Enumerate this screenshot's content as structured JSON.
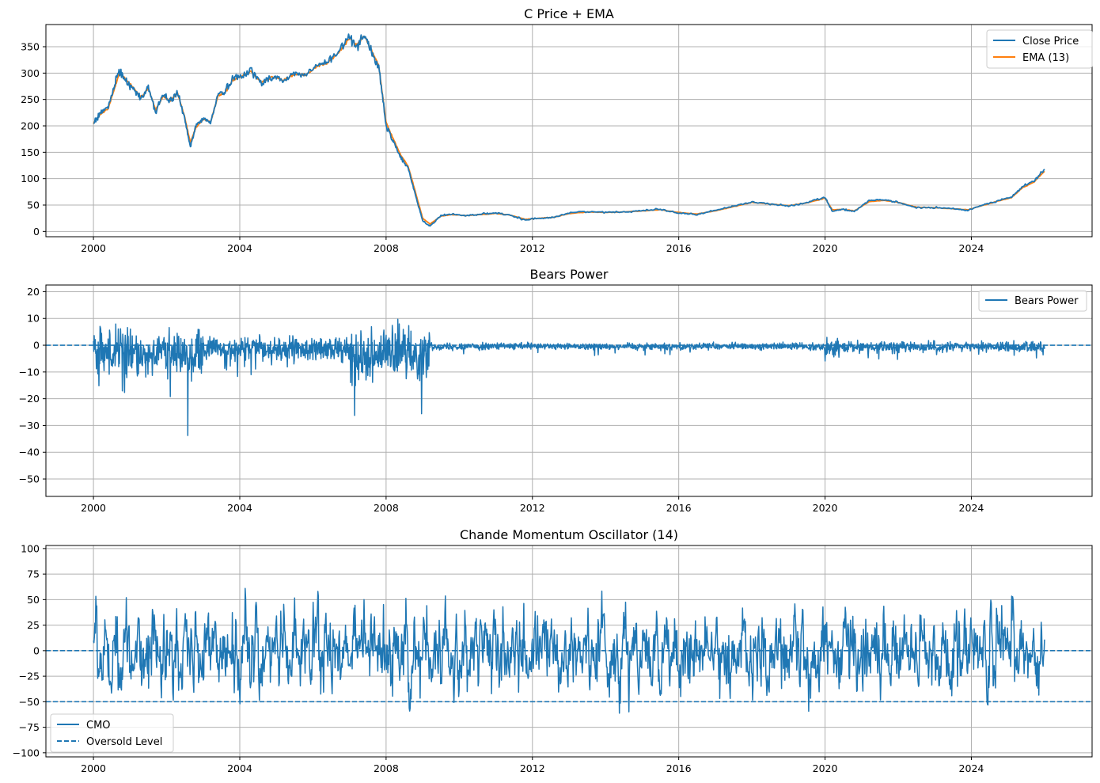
{
  "colors": {
    "blue": "#1f77b4",
    "orange": "#ff7f0e",
    "grid": "#b0b0b0",
    "frame": "#000000"
  },
  "chart_data": [
    {
      "type": "line",
      "title": "C Price + EMA",
      "xlabel": "",
      "ylabel": "",
      "xlim": [
        1998.7,
        2027.3
      ],
      "ylim": [
        -10,
        392
      ],
      "grid": true,
      "legend_position": "upper right",
      "x_ticks": [
        2000,
        2004,
        2008,
        2012,
        2016,
        2020,
        2024
      ],
      "x_tick_labels": [
        "2000",
        "2004",
        "2008",
        "2012",
        "2016",
        "2020",
        "2024"
      ],
      "y_ticks": [
        0,
        50,
        100,
        150,
        200,
        250,
        300,
        350
      ],
      "y_tick_labels": [
        "0",
        "50",
        "100",
        "150",
        "200",
        "250",
        "300",
        "350"
      ],
      "series": [
        {
          "name": "Close Price",
          "color": "#1f77b4",
          "x": [
            2000.0,
            2000.2,
            2000.4,
            2000.55,
            2000.7,
            2000.9,
            2001.1,
            2001.3,
            2001.5,
            2001.7,
            2001.9,
            2002.1,
            2002.3,
            2002.5,
            2002.65,
            2002.8,
            2003.0,
            2003.2,
            2003.4,
            2003.6,
            2003.8,
            2004.0,
            2004.3,
            2004.6,
            2004.9,
            2005.2,
            2005.5,
            2005.8,
            2006.1,
            2006.4,
            2006.7,
            2007.0,
            2007.2,
            2007.4,
            2007.6,
            2007.8,
            2008.0,
            2008.2,
            2008.4,
            2008.6,
            2008.8,
            2009.0,
            2009.2,
            2009.5,
            2009.8,
            2010.2,
            2010.6,
            2011.0,
            2011.4,
            2011.8,
            2012.2,
            2012.6,
            2013.0,
            2013.5,
            2014.0,
            2014.5,
            2015.0,
            2015.5,
            2016.0,
            2016.5,
            2017.0,
            2017.5,
            2018.0,
            2018.5,
            2019.0,
            2019.5,
            2020.0,
            2020.2,
            2020.5,
            2020.8,
            2021.2,
            2021.6,
            2022.0,
            2022.5,
            2023.0,
            2023.5,
            2023.9,
            2024.3,
            2024.7,
            2025.1,
            2025.4,
            2025.7,
            2026.0
          ],
          "values": [
            205,
            225,
            235,
            270,
            305,
            285,
            270,
            250,
            275,
            225,
            260,
            245,
            265,
            210,
            160,
            200,
            215,
            205,
            260,
            265,
            290,
            295,
            305,
            280,
            295,
            285,
            300,
            295,
            315,
            320,
            340,
            370,
            350,
            375,
            340,
            310,
            200,
            170,
            140,
            120,
            70,
            20,
            10,
            30,
            33,
            30,
            33,
            35,
            30,
            22,
            25,
            27,
            35,
            38,
            36,
            37,
            40,
            42,
            35,
            32,
            40,
            48,
            56,
            52,
            48,
            55,
            65,
            38,
            42,
            38,
            58,
            60,
            55,
            45,
            45,
            43,
            40,
            50,
            58,
            65,
            85,
            95,
            118
          ]
        },
        {
          "name": "EMA (13)",
          "color": "#ff7f0e",
          "x": [
            2000.0,
            2000.2,
            2000.4,
            2000.55,
            2000.7,
            2000.9,
            2001.1,
            2001.3,
            2001.5,
            2001.7,
            2001.9,
            2002.1,
            2002.3,
            2002.5,
            2002.65,
            2002.8,
            2003.0,
            2003.2,
            2003.4,
            2003.6,
            2003.8,
            2004.0,
            2004.3,
            2004.6,
            2004.9,
            2005.2,
            2005.5,
            2005.8,
            2006.1,
            2006.4,
            2006.7,
            2007.0,
            2007.2,
            2007.4,
            2007.6,
            2007.8,
            2008.0,
            2008.2,
            2008.4,
            2008.6,
            2008.8,
            2009.0,
            2009.2,
            2009.5,
            2009.8,
            2010.2,
            2010.6,
            2011.0,
            2011.4,
            2011.8,
            2012.2,
            2012.6,
            2013.0,
            2013.5,
            2014.0,
            2014.5,
            2015.0,
            2015.5,
            2016.0,
            2016.5,
            2017.0,
            2017.5,
            2018.0,
            2018.5,
            2019.0,
            2019.5,
            2020.0,
            2020.2,
            2020.5,
            2020.8,
            2021.2,
            2021.6,
            2022.0,
            2022.5,
            2023.0,
            2023.5,
            2023.9,
            2024.3,
            2024.7,
            2025.1,
            2025.4,
            2025.7,
            2026.0
          ],
          "values": [
            205,
            222,
            232,
            265,
            300,
            287,
            272,
            253,
            272,
            230,
            256,
            247,
            262,
            215,
            168,
            197,
            212,
            207,
            256,
            263,
            287,
            293,
            303,
            283,
            293,
            286,
            298,
            296,
            313,
            319,
            338,
            366,
            353,
            371,
            343,
            314,
            207,
            175,
            145,
            124,
            75,
            25,
            14,
            29,
            32,
            30,
            32,
            34,
            31,
            23,
            25,
            27,
            34,
            37,
            36,
            37,
            39,
            41,
            36,
            33,
            39,
            47,
            55,
            52,
            49,
            54,
            63,
            41,
            42,
            39,
            56,
            59,
            55,
            46,
            45,
            43,
            41,
            49,
            57,
            64,
            83,
            93,
            114
          ]
        }
      ]
    },
    {
      "type": "line",
      "title": "Bears Power",
      "xlabel": "",
      "ylabel": "",
      "xlim": [
        1998.7,
        2027.3
      ],
      "ylim": [
        -56.5,
        22.5
      ],
      "grid": true,
      "legend_position": "upper right",
      "x_ticks": [
        2000,
        2004,
        2008,
        2012,
        2016,
        2020,
        2024
      ],
      "x_tick_labels": [
        "2000",
        "2004",
        "2008",
        "2012",
        "2016",
        "2020",
        "2024"
      ],
      "y_ticks": [
        -50,
        -40,
        -30,
        -20,
        -10,
        0,
        10,
        20
      ],
      "y_tick_labels": [
        "−50",
        "−40",
        "−30",
        "−20",
        "−10",
        "0",
        "10",
        "20"
      ],
      "reference_lines": [
        {
          "y": 0,
          "style": "dashed"
        }
      ],
      "series": [
        {
          "name": "Bears Power",
          "color": "#1f77b4"
        }
      ]
    },
    {
      "type": "line",
      "title": "Chande Momentum Oscillator (14)",
      "xlabel": "",
      "ylabel": "",
      "xlim": [
        1998.7,
        2027.3
      ],
      "ylim": [
        -104,
        103
      ],
      "grid": true,
      "legend_position": "lower left",
      "x_ticks": [
        2000,
        2004,
        2008,
        2012,
        2016,
        2020,
        2024
      ],
      "x_tick_labels": [
        "2000",
        "2004",
        "2008",
        "2012",
        "2016",
        "2020",
        "2024"
      ],
      "y_ticks": [
        -100,
        -75,
        -50,
        -25,
        0,
        25,
        50,
        75,
        100
      ],
      "y_tick_labels": [
        "−100",
        "−75",
        "−50",
        "−25",
        "0",
        "25",
        "50",
        "75",
        "100"
      ],
      "reference_lines": [
        {
          "y": 0,
          "style": "dashed"
        },
        {
          "y": -50,
          "style": "dashed"
        }
      ],
      "series": [
        {
          "name": "CMO",
          "color": "#1f77b4"
        },
        {
          "name": "Oversold Level",
          "color": "#1f77b4",
          "style": "dashed"
        }
      ]
    }
  ]
}
